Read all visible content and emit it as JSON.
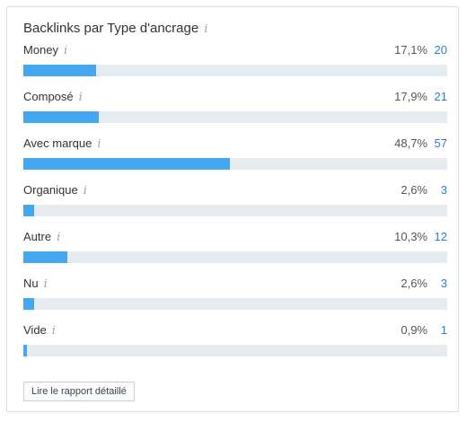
{
  "widget": {
    "title": "Backlinks par Type d'ancrage",
    "info_glyph": "i",
    "button_label": "Lire le rapport détaillé"
  },
  "rows": [
    {
      "label": "Money",
      "percent": "17,1%",
      "count": "20",
      "fraction": 0.171
    },
    {
      "label": "Composé",
      "percent": "17,9%",
      "count": "21",
      "fraction": 0.179
    },
    {
      "label": "Avec marque",
      "percent": "48,7%",
      "count": "57",
      "fraction": 0.487
    },
    {
      "label": "Organique",
      "percent": "2,6%",
      "count": "3",
      "fraction": 0.026
    },
    {
      "label": "Autre",
      "percent": "10,3%",
      "count": "12",
      "fraction": 0.103
    },
    {
      "label": "Nu",
      "percent": "2,6%",
      "count": "3",
      "fraction": 0.026
    },
    {
      "label": "Vide",
      "percent": "0,9%",
      "count": "1",
      "fraction": 0.009
    }
  ],
  "colors": {
    "bar_fill": "#46a7f1",
    "bar_track": "#e6ebf0",
    "count_link": "#2a7cd1"
  }
}
